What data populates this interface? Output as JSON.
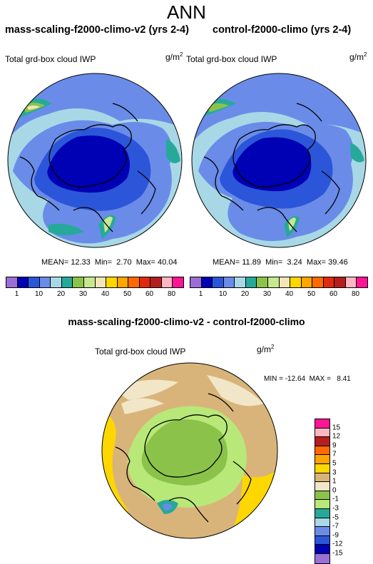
{
  "title": "ANN",
  "panels": [
    {
      "title": "mass-scaling-f2000-climo-v2 (yrs 2-4)",
      "variable": "Total grd-box cloud IWP",
      "units": "g/m",
      "units_exp": "2",
      "stats": {
        "mean": "MEAN= 12.33",
        "min": "Min=  2.70",
        "max": "Max= 40.04"
      }
    },
    {
      "title": "control-f2000-climo (yrs 2-4)",
      "variable": "Total grd-box cloud IWP",
      "units": "g/m",
      "units_exp": "2",
      "stats": {
        "mean": "MEAN= 11.89",
        "min": "Min=  3.24",
        "max": "Max= 39.46"
      }
    }
  ],
  "colorbar": {
    "labels": [
      "1",
      "10",
      "20",
      "30",
      "40",
      "50",
      "60",
      "80"
    ],
    "colors": [
      "#9b6fd6",
      "#0000b4",
      "#2c56d9",
      "#6a8ce8",
      "#a8d8e6",
      "#27a99a",
      "#8bc34a",
      "#c8e890",
      "#f2e6b8",
      "#ffd700",
      "#ffa500",
      "#ff6a00",
      "#e02a10",
      "#b51e1e",
      "#ffb6c1",
      "#ff1493"
    ]
  },
  "difference": {
    "title": "mass-scaling-f2000-climo-v2 - control-f2000-climo",
    "variable": "Total grd-box cloud IWP",
    "units": "g/m",
    "units_exp": "2",
    "minmax": "MIN = -12.64  MAX =   8.41",
    "colorbar": {
      "labels": [
        "15",
        "12",
        "9",
        "7",
        "5",
        "3",
        "1",
        "0",
        "-1",
        "-3",
        "-5",
        "-7",
        "-9",
        "-12",
        "-15"
      ],
      "colors": [
        "#ff1493",
        "#ffb6c1",
        "#b51e1e",
        "#ff6a00",
        "#ffa500",
        "#ffd700",
        "#d9b47a",
        "#f2e6c8",
        "#8bc34a",
        "#b8e878",
        "#27a99a",
        "#a8d8e6",
        "#6a8ce8",
        "#2c56d9",
        "#0000b4",
        "#9b6fd6"
      ]
    }
  }
}
